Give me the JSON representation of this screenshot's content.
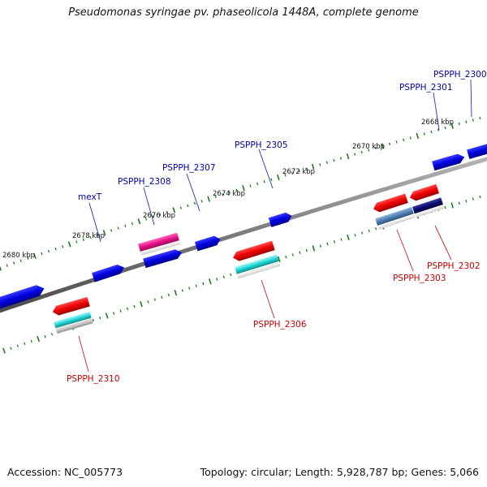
{
  "title": "Pseudomonas syringae pv. phaseolicola 1448A, complete genome",
  "footer": {
    "accession": "Accession: NC_005773",
    "topology": "Topology: circular; Length: 5,928,787 bp; Genes: 5,066"
  },
  "colors": {
    "forward_label": "#0000aa",
    "reverse_label": "#cc0000",
    "backbone": "#7a7a7a",
    "tick": "#1a7a1a"
  },
  "scale_labels": [
    "2680 kbp",
    "2678 kbp",
    "2676 kbp",
    "2674 kbp",
    "2672 kbp",
    "2670 kbp",
    "2668 kbp"
  ],
  "forward_genes": [
    "PSPPH_2300",
    "PSPPH_2301",
    "PSPPH_2305",
    "PSPPH_2307",
    "PSPPH_2308",
    "mexT"
  ],
  "reverse_genes": [
    "PSPPH_2302",
    "PSPPH_2303",
    "PSPPH_2306",
    "PSPPH_2310"
  ]
}
